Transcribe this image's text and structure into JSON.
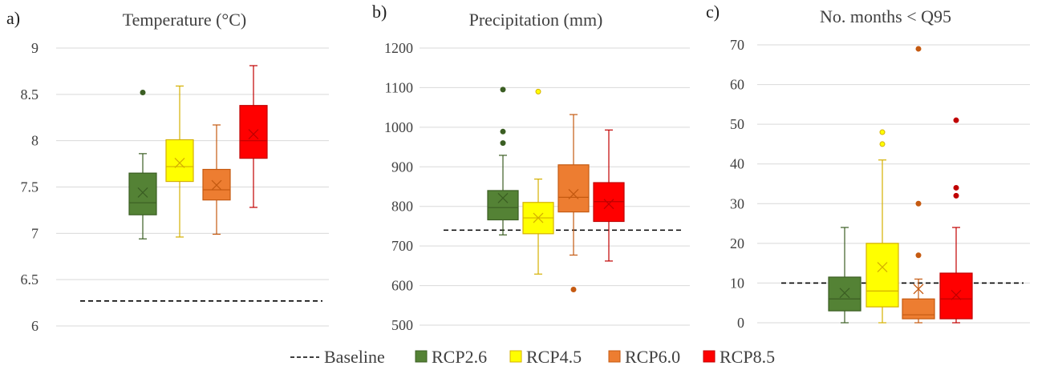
{
  "legend": {
    "items": [
      {
        "name": "Baseline",
        "type": "line",
        "color": "#000000"
      },
      {
        "name": "RCP2.6",
        "type": "box",
        "color": "#548235"
      },
      {
        "name": "RCP4.5",
        "type": "box",
        "color": "#FFFF00"
      },
      {
        "name": "RCP6.0",
        "type": "box",
        "color": "#ED7D31"
      },
      {
        "name": "RCP8.5",
        "type": "box",
        "color": "#FF0000"
      }
    ]
  },
  "chart_data": [
    {
      "type": "box",
      "panel": "a)",
      "title": "Temperature (°C)",
      "ylim": [
        6,
        9
      ],
      "yticks": [
        "6",
        "6.5",
        "7",
        "7.5",
        "8",
        "8.5",
        "9"
      ],
      "ytick_values": [
        6,
        6.5,
        7,
        7.5,
        8,
        8.5,
        9
      ],
      "baseline": 6.27,
      "grid": true,
      "series": [
        {
          "name": "RCP2.6",
          "whisker_low": 6.94,
          "q1": 7.2,
          "median": 7.33,
          "q3": 7.65,
          "whisker_high": 7.86,
          "mean": 7.44,
          "outliers": [
            8.52
          ]
        },
        {
          "name": "RCP4.5",
          "whisker_low": 6.96,
          "q1": 7.56,
          "median": 7.72,
          "q3": 8.01,
          "whisker_high": 8.59,
          "mean": 7.76,
          "outliers": []
        },
        {
          "name": "RCP6.0",
          "whisker_low": 6.99,
          "q1": 7.36,
          "median": 7.47,
          "q3": 7.69,
          "whisker_high": 8.17,
          "mean": 7.52,
          "outliers": []
        },
        {
          "name": "RCP8.5",
          "whisker_low": 7.28,
          "q1": 7.81,
          "median": 8.0,
          "q3": 8.38,
          "whisker_high": 8.81,
          "mean": 8.07,
          "outliers": []
        }
      ]
    },
    {
      "type": "box",
      "panel": "b)",
      "title": "Precipitation (mm)",
      "ylim": [
        500,
        1200
      ],
      "yticks": [
        "500",
        "600",
        "700",
        "800",
        "900",
        "1000",
        "1100",
        "1200"
      ],
      "ytick_values": [
        500,
        600,
        700,
        800,
        900,
        1000,
        1100,
        1200
      ],
      "baseline": 740,
      "grid": true,
      "series": [
        {
          "name": "RCP2.6",
          "whisker_low": 728,
          "q1": 766,
          "median": 797,
          "q3": 840,
          "whisker_high": 929,
          "mean": 821,
          "outliers": [
            960,
            989,
            1095
          ]
        },
        {
          "name": "RCP4.5",
          "whisker_low": 629,
          "q1": 731,
          "median": 771,
          "q3": 810,
          "whisker_high": 869,
          "mean": 771,
          "outliers": [
            1090
          ]
        },
        {
          "name": "RCP6.0",
          "whisker_low": 677,
          "q1": 786,
          "median": 823,
          "q3": 905,
          "whisker_high": 1032,
          "mean": 831,
          "outliers": [
            590
          ]
        },
        {
          "name": "RCP8.5",
          "whisker_low": 662,
          "q1": 762,
          "median": 812,
          "q3": 860,
          "whisker_high": 993,
          "mean": 806,
          "outliers": []
        }
      ]
    },
    {
      "type": "box",
      "panel": "c)",
      "title": "No. months < Q95",
      "ylim": [
        0,
        70
      ],
      "yticks": [
        "0",
        "10",
        "20",
        "30",
        "40",
        "50",
        "60",
        "70"
      ],
      "ytick_values": [
        0,
        10,
        20,
        30,
        40,
        50,
        60,
        70
      ],
      "baseline": 10,
      "grid": true,
      "series": [
        {
          "name": "RCP2.6",
          "whisker_low": 0,
          "q1": 3,
          "median": 6,
          "q3": 11.5,
          "whisker_high": 24,
          "mean": 7.5,
          "outliers": []
        },
        {
          "name": "RCP4.5",
          "whisker_low": 0,
          "q1": 4,
          "median": 8,
          "q3": 20,
          "whisker_high": 41,
          "mean": 14,
          "outliers": [
            45,
            48
          ]
        },
        {
          "name": "RCP6.0",
          "whisker_low": 0,
          "q1": 1,
          "median": 2,
          "q3": 6,
          "whisker_high": 11,
          "mean": 8.5,
          "outliers": [
            17,
            30,
            69
          ]
        },
        {
          "name": "RCP8.5",
          "whisker_low": 0,
          "q1": 1,
          "median": 6,
          "q3": 12.5,
          "whisker_high": 24,
          "mean": 7,
          "outliers": [
            32,
            34,
            51
          ]
        }
      ]
    }
  ]
}
